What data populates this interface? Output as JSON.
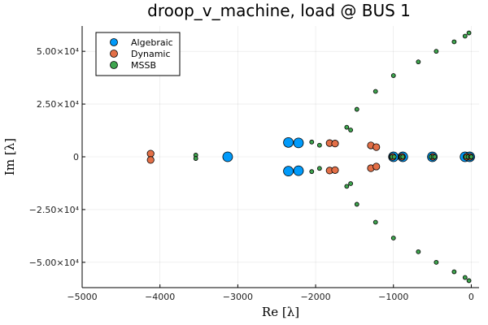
{
  "chart_data": {
    "type": "scatter",
    "title": "droop_v_machine, load @ BUS 1",
    "xlabel": "Re [λ]",
    "ylabel": "Im [λ]",
    "xlim": [
      -5000,
      100
    ],
    "ylim": [
      -62000,
      62000
    ],
    "xticks": [
      -5000,
      -4000,
      -3000,
      -2000,
      -1000,
      0
    ],
    "xtick_labels": [
      "−5000",
      "−4000",
      "−3000",
      "−2000",
      "−1000",
      "0"
    ],
    "yticks": [
      50000,
      25000,
      0,
      -25000,
      -50000
    ],
    "ytick_labels": [
      "5.00×10⁴",
      "2.50×10⁴",
      "0",
      "−2.50×10⁴",
      "−5.00×10⁴"
    ],
    "grid": true,
    "legend_position": "top-left",
    "series": [
      {
        "name": "Algebraic",
        "color": "#009AFA",
        "points": [
          [
            -3130,
            0
          ],
          [
            -2350,
            6800
          ],
          [
            -2350,
            -6800
          ],
          [
            -2220,
            6600
          ],
          [
            -2220,
            -6600
          ],
          [
            -1000,
            0
          ],
          [
            -880,
            0
          ],
          [
            -500,
            0
          ],
          [
            -80,
            0
          ],
          [
            -20,
            0
          ]
        ]
      },
      {
        "name": "Dynamic",
        "color": "#E36F47",
        "points": [
          [
            -4120,
            1500
          ],
          [
            -4120,
            -1500
          ],
          [
            -1820,
            6500
          ],
          [
            -1820,
            -6500
          ],
          [
            -1750,
            6300
          ],
          [
            -1750,
            -6300
          ],
          [
            -1290,
            5400
          ],
          [
            -1290,
            -5400
          ],
          [
            -1220,
            4600
          ],
          [
            -1220,
            -4600
          ],
          [
            -1010,
            0
          ],
          [
            -890,
            0
          ],
          [
            -495,
            0
          ],
          [
            -60,
            0
          ],
          [
            -15,
            0
          ]
        ]
      },
      {
        "name": "MSSB",
        "color": "#3EA44E",
        "points": [
          [
            -3540,
            800
          ],
          [
            -3540,
            -800
          ],
          [
            -2050,
            7000
          ],
          [
            -2050,
            -7000
          ],
          [
            -1950,
            5500
          ],
          [
            -1950,
            -5500
          ],
          [
            -1600,
            14000
          ],
          [
            -1600,
            -14000
          ],
          [
            -1550,
            12700
          ],
          [
            -1550,
            -12700
          ],
          [
            -1470,
            22500
          ],
          [
            -1470,
            -22500
          ],
          [
            -1230,
            31000
          ],
          [
            -1230,
            -31000
          ],
          [
            -1000,
            38500
          ],
          [
            -1000,
            -38500
          ],
          [
            -680,
            45000
          ],
          [
            -680,
            -45000
          ],
          [
            -450,
            50000
          ],
          [
            -450,
            -50000
          ],
          [
            -220,
            54500
          ],
          [
            -220,
            -54500
          ],
          [
            -80,
            57200
          ],
          [
            -80,
            -57200
          ],
          [
            -30,
            58700
          ],
          [
            -30,
            -58700
          ],
          [
            -1020,
            0
          ],
          [
            -990,
            0
          ],
          [
            -900,
            0
          ],
          [
            -880,
            0
          ],
          [
            -520,
            0
          ],
          [
            -490,
            0
          ],
          [
            -470,
            0
          ],
          [
            -70,
            0
          ],
          [
            -40,
            0
          ],
          [
            -10,
            0
          ],
          [
            0,
            0
          ]
        ]
      }
    ]
  }
}
